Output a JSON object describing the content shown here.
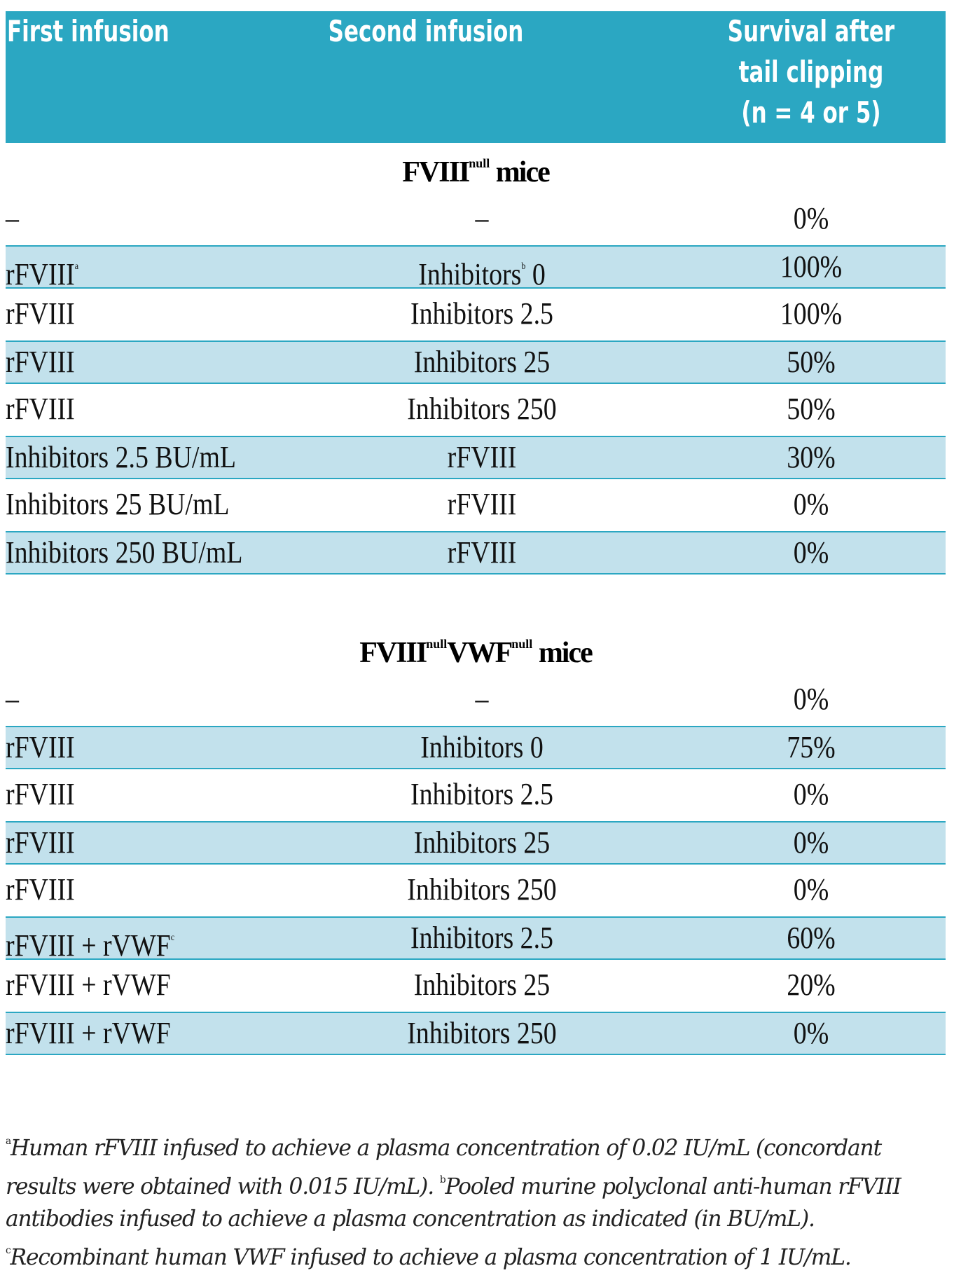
{
  "header": {
    "col1": "First infusion",
    "col2": "Second infusion",
    "col3_line1": "Survival after",
    "col3_line2": "tail clipping",
    "col3_line3": "(n = 4 or 5)"
  },
  "sections": [
    {
      "title_prefix": "FVIII",
      "title_sup": "null",
      "title_suffix": " mice",
      "rows": [
        {
          "first": "–",
          "second": "–",
          "survival": "0%"
        },
        {
          "first": "rFVIII",
          "first_sup": "a",
          "second": "Inhibitors",
          "second_sup": "b",
          "second_tail": " 0",
          "survival": "100%"
        },
        {
          "first": "rFVIII",
          "second": "Inhibitors 2.5",
          "survival": "100%"
        },
        {
          "first": "rFVIII",
          "second": "Inhibitors 25",
          "survival": "50%"
        },
        {
          "first": "rFVIII",
          "second": "Inhibitors 250",
          "survival": "50%"
        },
        {
          "first": "Inhibitors 2.5 BU/mL",
          "second": "rFVIII",
          "survival": "30%"
        },
        {
          "first": "Inhibitors 25 BU/mL",
          "second": "rFVIII",
          "survival": "0%"
        },
        {
          "first": "Inhibitors 250 BU/mL",
          "second": "rFVIII",
          "survival": "0%"
        }
      ]
    },
    {
      "title_prefix": "FVIII",
      "title_sup": "null",
      "title_mid": "VWF",
      "title_sup2": "null",
      "title_suffix": " mice",
      "rows": [
        {
          "first": "–",
          "second": "–",
          "survival": "0%"
        },
        {
          "first": "rFVIII",
          "second": "Inhibitors 0",
          "survival": "75%"
        },
        {
          "first": "rFVIII",
          "second": "Inhibitors 2.5",
          "survival": "0%"
        },
        {
          "first": "rFVIII",
          "second": "Inhibitors 25",
          "survival": "0%"
        },
        {
          "first": "rFVIII",
          "second": "Inhibitors 250",
          "survival": "0%"
        },
        {
          "first": "rFVIII + rVWF",
          "first_sup": "c",
          "second": "Inhibitors 2.5",
          "survival": "60%"
        },
        {
          "first": "rFVIII + rVWF",
          "second": "Inhibitors 25",
          "survival": "20%"
        },
        {
          "first": "rFVIII + rVWF",
          "second": "Inhibitors 250",
          "survival": "0%"
        }
      ]
    }
  ],
  "footnotes": {
    "a_sup": "a",
    "a_text": "Human rFVIII infused to achieve a plasma concentration of 0.02 IU/mL (concordant",
    "a_text2": "results were obtained with 0.015 IU/mL). ",
    "b_sup": "b",
    "b_text": "Pooled murine polyclonal anti-human rFVIII",
    "b_text2": "antibodies infused to achieve a plasma concentration as indicated (in BU/mL).",
    "c_sup": "c",
    "c_text": "Recombinant human VWF infused to achieve a plasma concentration of 1 IU/mL."
  },
  "colors": {
    "header_bg": "#2ba7c2",
    "row_shade": "#c2e1ec"
  }
}
